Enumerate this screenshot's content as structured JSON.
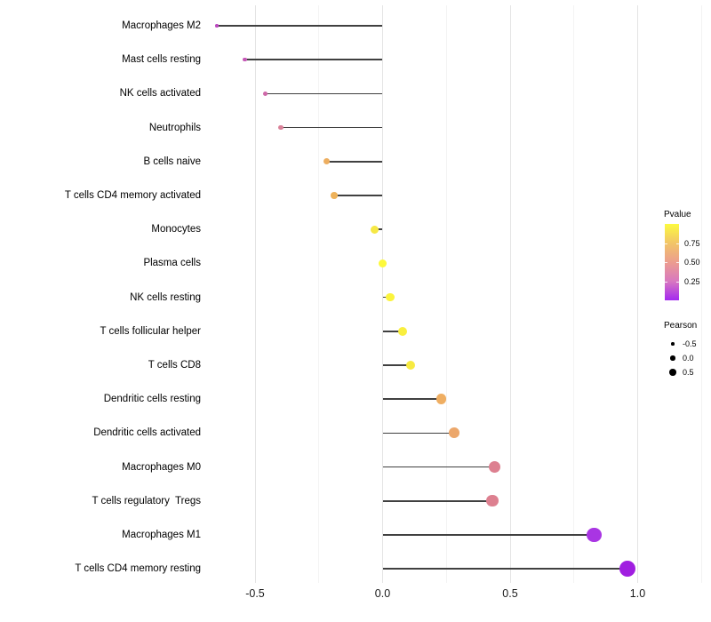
{
  "chart_data": {
    "type": "scatter",
    "variant": "lollipop",
    "title": "",
    "xlabel": "",
    "ylabel": "",
    "x_ticks": [
      "-0.5",
      "0.0",
      "0.5",
      "1.0"
    ],
    "x_tick_values": [
      -0.5,
      0.0,
      0.5,
      1.0
    ],
    "xlim": [
      -0.69,
      1.26
    ],
    "grid_major_values": [
      -0.5,
      0.0,
      0.5,
      1.0
    ],
    "grid_minor_values": [
      -0.25,
      0.25,
      0.75,
      1.25
    ],
    "grid_on": true,
    "legend_position": "right",
    "points": [
      {
        "label": "Macrophages M2",
        "pearson": -0.65,
        "pvalue": 0.15,
        "color": "#BB49BF"
      },
      {
        "label": "Mast cells resting",
        "pearson": -0.54,
        "pvalue": 0.22,
        "color": "#C558B6"
      },
      {
        "label": "NK cells activated",
        "pearson": -0.46,
        "pvalue": 0.3,
        "color": "#CE68A8"
      },
      {
        "label": "Neutrophils",
        "pearson": -0.4,
        "pvalue": 0.38,
        "color": "#DA8199"
      },
      {
        "label": "B cells naive",
        "pearson": -0.22,
        "pvalue": 0.66,
        "color": "#EDAE60"
      },
      {
        "label": "T cells CD4 memory activated",
        "pearson": -0.19,
        "pvalue": 0.7,
        "color": "#EEB25A"
      },
      {
        "label": "Monocytes",
        "pearson": -0.03,
        "pvalue": 0.9,
        "color": "#F6E845"
      },
      {
        "label": "Plasma cells",
        "pearson": 0.0,
        "pvalue": 0.99,
        "color": "#FDF93B"
      },
      {
        "label": "NK cells resting",
        "pearson": 0.03,
        "pvalue": 0.97,
        "color": "#FBF43D"
      },
      {
        "label": "T cells follicular helper",
        "pearson": 0.08,
        "pvalue": 0.94,
        "color": "#F9EF3F"
      },
      {
        "label": "T cells CD8",
        "pearson": 0.11,
        "pvalue": 0.92,
        "color": "#F7EA41"
      },
      {
        "label": "Dendritic cells resting",
        "pearson": 0.23,
        "pvalue": 0.67,
        "color": "#EFAE62"
      },
      {
        "label": "Dendritic cells activated",
        "pearson": 0.28,
        "pvalue": 0.63,
        "color": "#ECA76B"
      },
      {
        "label": "Macrophages M0",
        "pearson": 0.44,
        "pvalue": 0.4,
        "color": "#DD8090"
      },
      {
        "label": "T cells regulatory  Tregs",
        "pearson": 0.43,
        "pvalue": 0.4,
        "color": "#DD8090"
      },
      {
        "label": "Macrophages M1",
        "pearson": 0.83,
        "pvalue": 0.05,
        "color": "#A935E3"
      },
      {
        "label": "T cells CD4 memory resting",
        "pearson": 0.96,
        "pvalue": 0.02,
        "color": "#A01EE0"
      }
    ],
    "legend": {
      "pvalue": {
        "title": "Pvalue",
        "ticks": [
          "0.75",
          "0.50",
          "0.25"
        ],
        "tick_values": [
          0.75,
          0.5,
          0.25
        ],
        "gradient_stops_top_to_bottom": [
          "#FCFA3F",
          "#F2C567",
          "#EC9D8F",
          "#D878C0",
          "#A428F0"
        ]
      },
      "pearson": {
        "title": "Pearson",
        "items": [
          {
            "label": "-0.5",
            "diameter": 3.5
          },
          {
            "label": "0.0",
            "diameter": 5.5
          },
          {
            "label": "0.5",
            "diameter": 7.5
          }
        ]
      }
    },
    "stem_color": "#404040",
    "grid_major_color": "#e4e4e4",
    "grid_minor_color": "#f3f3f3"
  }
}
